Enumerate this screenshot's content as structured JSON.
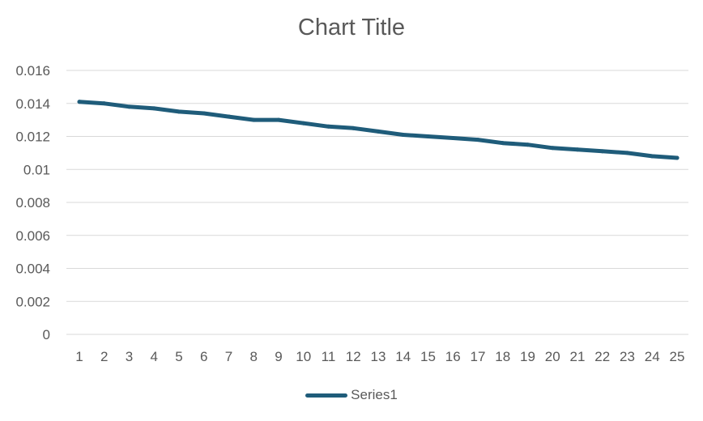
{
  "chart_data": {
    "type": "line",
    "title": "Chart Title",
    "xlabel": "",
    "ylabel": "",
    "categories": [
      "1",
      "2",
      "3",
      "4",
      "5",
      "6",
      "7",
      "8",
      "9",
      "10",
      "11",
      "12",
      "13",
      "14",
      "15",
      "16",
      "17",
      "18",
      "19",
      "20",
      "21",
      "22",
      "23",
      "24",
      "25"
    ],
    "series": [
      {
        "name": "Series1",
        "color": "#1F5C7A",
        "values": [
          0.0141,
          0.014,
          0.0138,
          0.0137,
          0.0135,
          0.0134,
          0.0132,
          0.013,
          0.013,
          0.0128,
          0.0126,
          0.0125,
          0.0123,
          0.0121,
          0.012,
          0.0119,
          0.0118,
          0.0116,
          0.0115,
          0.0113,
          0.0112,
          0.0111,
          0.011,
          0.0108,
          0.0107
        ]
      }
    ],
    "ylim": [
      0,
      0.016
    ],
    "yticks": [
      "0",
      "0.002",
      "0.004",
      "0.006",
      "0.008",
      "0.01",
      "0.012",
      "0.014",
      "0.016"
    ],
    "grid": true,
    "legend_position": "bottom"
  }
}
